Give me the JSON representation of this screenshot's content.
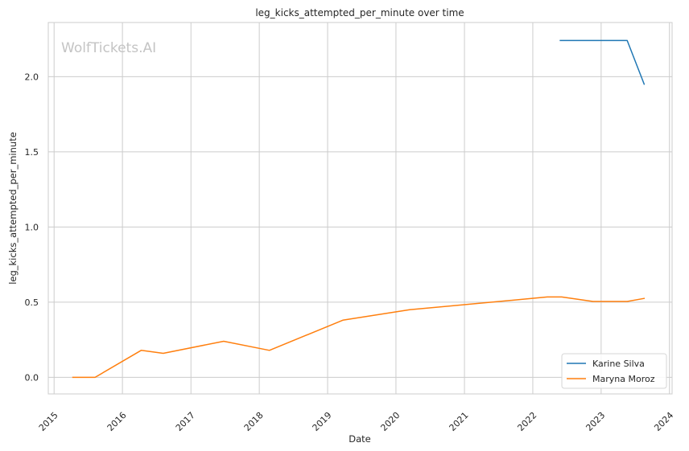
{
  "chart_data": {
    "type": "line",
    "title": "leg_kicks_attempted_per_minute over time",
    "xlabel": "Date",
    "ylabel": "leg_kicks_attempted_per_minute",
    "watermark": "WolfTickets.AI",
    "xlim": [
      "2014-12-01",
      "2024-01-15"
    ],
    "ylim": [
      -0.11,
      2.36
    ],
    "x_ticks": [
      "2015",
      "2016",
      "2017",
      "2018",
      "2019",
      "2020",
      "2021",
      "2022",
      "2023",
      "2024"
    ],
    "y_ticks": [
      "0.0",
      "0.5",
      "1.0",
      "1.5",
      "2.0"
    ],
    "y_tick_values": [
      0,
      0.5,
      1.0,
      1.5,
      2.0
    ],
    "grid": true,
    "legend_position": "lower-right",
    "series": [
      {
        "name": "Karine Silva",
        "color": "#1f77b4",
        "x": [
          "2022-05-28",
          "2023-05-20",
          "2023-08-19"
        ],
        "y": [
          2.24,
          2.24,
          1.95
        ]
      },
      {
        "name": "Maryna Moroz",
        "color": "#ff7f0e",
        "x": [
          "2015-04-11",
          "2015-08-08",
          "2016-04-10",
          "2016-08-06",
          "2017-06-25",
          "2018-02-24",
          "2019-03-23",
          "2020-03-14",
          "2022-03-19",
          "2022-06-04",
          "2022-11-19",
          "2023-05-20",
          "2023-08-19"
        ],
        "y": [
          0.0,
          0.0,
          0.18,
          0.16,
          0.24,
          0.18,
          0.38,
          0.45,
          0.535,
          0.535,
          0.505,
          0.505,
          0.525
        ]
      }
    ]
  }
}
